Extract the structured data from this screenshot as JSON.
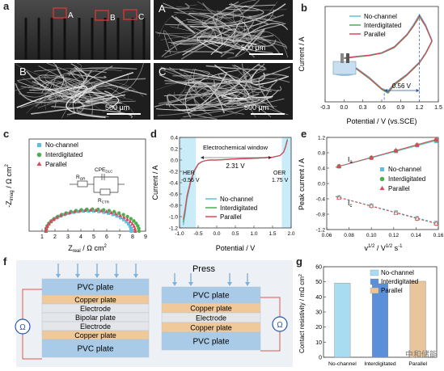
{
  "panels": {
    "a": "a",
    "b": "b",
    "c": "c",
    "d": "d",
    "e": "e",
    "f": "f",
    "g": "g"
  },
  "sem": {
    "overview_tags": [
      "A",
      "B",
      "C"
    ],
    "tile_a": "A",
    "tile_b": "B",
    "tile_c": "C",
    "scale": "500 μm"
  },
  "legend_common": [
    "No-channel",
    "Interdigitated",
    "Parallel"
  ],
  "colors": {
    "no_channel": "#5bc0de",
    "interdigitated": "#4caf50",
    "parallel": "#e0455a",
    "sem_dark": "#1e1e1e",
    "plate_blue": "#a9cbe8",
    "plate_tan": "#f0c99a",
    "plate_mid": "#e4e6ea"
  },
  "chart_data": [
    {
      "panel": "b",
      "type": "line",
      "xlabel": "Potential / V (vs.SCE)",
      "ylabel": "Current / A",
      "xlim": [
        -0.3,
        1.5
      ],
      "xticks": [
        "-0.3",
        "0.0",
        "0.3",
        "0.6",
        "0.9",
        "1.2",
        "1.5"
      ],
      "annotation": "0.56 V",
      "series": [
        {
          "name": "No-channel",
          "color": "#5bc0de",
          "x": [
            0.0,
            0.2,
            0.4,
            0.6,
            0.8,
            1.0,
            1.1,
            1.2,
            1.3,
            1.4,
            1.3,
            1.2,
            1.0,
            0.8,
            0.7,
            0.6,
            0.4,
            0.2,
            0.0
          ],
          "y": [
            0.02,
            0.04,
            0.06,
            0.1,
            0.2,
            0.4,
            0.55,
            0.72,
            0.55,
            0.3,
            0.1,
            -0.05,
            -0.25,
            -0.4,
            -0.52,
            -0.48,
            -0.3,
            -0.15,
            -0.05
          ]
        },
        {
          "name": "Interdigitated",
          "color": "#4caf50",
          "x": [
            0.0,
            0.2,
            0.4,
            0.6,
            0.8,
            1.0,
            1.1,
            1.2,
            1.3,
            1.4,
            1.3,
            1.2,
            1.0,
            0.8,
            0.7,
            0.6,
            0.4,
            0.2,
            0.0
          ],
          "y": [
            0.0,
            0.03,
            0.05,
            0.09,
            0.18,
            0.38,
            0.52,
            0.68,
            0.52,
            0.28,
            0.08,
            -0.07,
            -0.27,
            -0.43,
            -0.56,
            -0.5,
            -0.32,
            -0.17,
            -0.07
          ]
        },
        {
          "name": "Parallel",
          "color": "#e0455a",
          "x": [
            0.0,
            0.2,
            0.4,
            0.6,
            0.8,
            1.0,
            1.1,
            1.2,
            1.3,
            1.4,
            1.3,
            1.2,
            1.0,
            0.8,
            0.7,
            0.6,
            0.4,
            0.2,
            0.0
          ],
          "y": [
            0.01,
            0.035,
            0.055,
            0.095,
            0.19,
            0.39,
            0.53,
            0.7,
            0.53,
            0.29,
            0.09,
            -0.06,
            -0.26,
            -0.41,
            -0.54,
            -0.49,
            -0.31,
            -0.16,
            -0.06
          ]
        }
      ]
    },
    {
      "panel": "c",
      "type": "scatter",
      "xlabel": "Z",
      "xlabel_sub": "real",
      "xlabel_unit": " / Ω cm",
      "xlabel_sup": "2",
      "ylabel": "-Z",
      "ylabel_sub": "imag",
      "ylabel_unit": " / Ω cm",
      "ylabel_sup": "2",
      "xlim": [
        0,
        9
      ],
      "xticks": [
        "1",
        "2",
        "3",
        "4",
        "5",
        "6",
        "7",
        "8",
        "9"
      ],
      "circuit": {
        "r_ohm": "R",
        "r_ohm_sub": "ΩR",
        "cpe": "CPE",
        "cpe_sub": "DLC",
        "r_ctr": "R",
        "r_ctr_sub": "CTR"
      },
      "series": [
        {
          "name": "No-channel",
          "color": "#5bc0de",
          "marker": "square",
          "center": 4.6,
          "radius": 3.3
        },
        {
          "name": "Interdigitated",
          "color": "#4caf50",
          "marker": "circle",
          "center": 4.9,
          "radius": 3.6
        },
        {
          "name": "Parallel",
          "color": "#e0455a",
          "marker": "triangle",
          "center": 4.75,
          "radius": 3.45
        }
      ]
    },
    {
      "panel": "d",
      "type": "line",
      "xlabel": "Potential / V",
      "ylabel": "Current / A",
      "xlim": [
        -1.0,
        2.0
      ],
      "ylim": [
        -1.2,
        0.4
      ],
      "xticks": [
        "-1.0",
        "-0.5",
        "0.0",
        "0.5",
        "1.0",
        "1.5",
        "2.0"
      ],
      "yticks": [
        "-1.2",
        "-1.0",
        "-0.8",
        "-0.6",
        "-0.4",
        "-0.2",
        "0.0",
        "0.2",
        "0.4"
      ],
      "window_label": "Electrochemical window",
      "window_value": "2.31 V",
      "her_label": "HER",
      "her_value": "-0.56 V",
      "oer_label": "OER",
      "oer_value": "1.75 V",
      "her_x": -0.56,
      "oer_x": 1.75,
      "series": [
        {
          "name": "No-channel",
          "color": "#5bc0de",
          "x": [
            -0.9,
            -0.85,
            -0.8,
            -0.7,
            -0.6,
            -0.5,
            -0.4,
            -0.3,
            -0.2,
            0.0,
            0.5,
            1.0,
            1.5,
            1.7,
            1.8,
            1.85,
            1.9
          ],
          "y": [
            -1.15,
            -0.95,
            -0.7,
            -0.4,
            -0.2,
            -0.08,
            -0.03,
            -0.01,
            0.0,
            0.0,
            0.02,
            0.03,
            0.05,
            0.08,
            0.15,
            0.25,
            0.38
          ]
        },
        {
          "name": "Interdigitated",
          "color": "#4caf50",
          "x": [
            -0.9,
            -0.85,
            -0.8,
            -0.7,
            -0.6,
            -0.5,
            -0.4,
            -0.3,
            -0.2,
            0.0,
            0.5,
            1.0,
            1.5,
            1.7,
            1.8,
            1.85,
            1.9
          ],
          "y": [
            -1.1,
            -0.9,
            -0.66,
            -0.38,
            -0.19,
            -0.07,
            -0.03,
            -0.01,
            0.0,
            0.0,
            0.02,
            0.03,
            0.05,
            0.08,
            0.14,
            0.24,
            0.36
          ]
        },
        {
          "name": "Parallel",
          "color": "#e0455a",
          "x": [
            -0.9,
            -0.85,
            -0.8,
            -0.7,
            -0.6,
            -0.5,
            -0.4,
            -0.3,
            -0.2,
            0.0,
            0.5,
            1.0,
            1.5,
            1.7,
            1.8,
            1.85,
            1.9
          ],
          "y": [
            -1.05,
            -0.86,
            -0.63,
            -0.36,
            -0.18,
            -0.07,
            -0.03,
            -0.01,
            0.0,
            0.0,
            0.02,
            0.03,
            0.05,
            0.08,
            0.14,
            0.23,
            0.35
          ]
        }
      ]
    },
    {
      "panel": "e",
      "type": "scatter",
      "xlabel": "v",
      "xlabel_sup1": "1/2",
      "xlabel_mid": " / V",
      "xlabel_sup2": "1/2",
      "xlabel_end": " s",
      "xlabel_sup3": "-1",
      "ylabel": "Peak current / A",
      "xlim": [
        0.06,
        0.16
      ],
      "ylim": [
        -1.2,
        1.2
      ],
      "xticks": [
        "0.06",
        "0.08",
        "0.10",
        "0.12",
        "0.14",
        "0.16"
      ],
      "yticks": [
        "-1.2",
        "-0.8",
        "-0.4",
        "0.0",
        "0.4",
        "0.8",
        "1.2"
      ],
      "ia_label": "I",
      "ia_sub": "a",
      "ic_label": "I",
      "ic_sub": "c",
      "x": [
        0.071,
        0.1,
        0.122,
        0.141,
        0.158
      ],
      "series": [
        {
          "name": "No-channel",
          "color": "#5bc0de",
          "marker": "square",
          "anodic": [
            0.44,
            0.66,
            0.84,
            0.99,
            1.1
          ],
          "cathodic": [
            -0.36,
            -0.57,
            -0.75,
            -0.9,
            -1.02
          ]
        },
        {
          "name": "Interdigitated",
          "color": "#4caf50",
          "marker": "circle",
          "anodic": [
            0.45,
            0.67,
            0.85,
            1.0,
            1.13
          ],
          "cathodic": [
            -0.37,
            -0.59,
            -0.76,
            -0.92,
            -1.05
          ]
        },
        {
          "name": "Parallel",
          "color": "#e0455a",
          "marker": "triangle",
          "anodic": [
            0.45,
            0.68,
            0.86,
            1.01,
            1.15
          ],
          "cathodic": [
            -0.37,
            -0.58,
            -0.77,
            -0.91,
            -1.04
          ]
        }
      ]
    },
    {
      "panel": "g",
      "type": "bar",
      "ylabel": "Contact resistivity / mΩ cm",
      "ylabel_sup": "2",
      "ylim": [
        0,
        60
      ],
      "yticks": [
        "0",
        "10",
        "20",
        "30",
        "40",
        "50",
        "60"
      ],
      "categories": [
        "No-channel",
        "Interdigitated",
        "Parallel"
      ],
      "values": [
        49.2,
        48.8,
        50.4
      ],
      "colors": [
        "#a8dcf0",
        "#5b8fd9",
        "#e8c59a"
      ]
    }
  ],
  "schematic": {
    "press": "Press",
    "ohm": "Ω",
    "left_stack": [
      "PVC plate",
      "Copper plate",
      "Electrode",
      "Bipolar plate",
      "Electrode",
      "Copper plate",
      "PVC plate"
    ],
    "right_stack": [
      "PVC plate",
      "Copper plate",
      "Electrode",
      "Copper plate",
      "PVC plate"
    ]
  },
  "watermark": "中和储能"
}
